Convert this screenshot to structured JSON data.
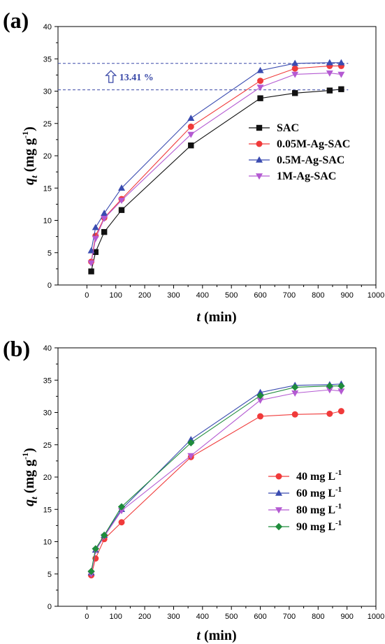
{
  "colors": {
    "black": "#111111",
    "red": "#f03a3a",
    "blue": "#3a4bb0",
    "magenta": "#b45ad2",
    "green": "#1f8c3c",
    "annotation": "#3b4aa8"
  },
  "chart_data": [
    {
      "panel": "(a)",
      "type": "line",
      "xlabel_var": "t",
      "xlabel_unit": " (min)",
      "ylabel_var": "q",
      "ylabel_sub": "t",
      "ylabel_unit": " (mg g",
      "ylabel_sup": "-1",
      "ylabel_close": ")",
      "xlim": [
        -100,
        1000
      ],
      "ylim": [
        0,
        40
      ],
      "xticks": [
        0,
        100,
        200,
        300,
        400,
        500,
        600,
        700,
        800,
        900,
        1000
      ],
      "yticks": [
        0,
        5,
        10,
        15,
        20,
        25,
        30,
        35,
        40
      ],
      "legend_position": "center-right",
      "annotation": {
        "text": "13.41 %",
        "icon": "up-arrow-icon",
        "reference_lines_y": [
          34.3,
          30.2
        ]
      },
      "series": [
        {
          "name": "SAC",
          "color_key": "black",
          "marker": "square",
          "x": [
            15,
            30,
            60,
            120,
            360,
            600,
            720,
            840,
            880
          ],
          "y": [
            2.1,
            5.1,
            8.2,
            11.6,
            21.6,
            28.9,
            29.7,
            30.1,
            30.3
          ]
        },
        {
          "name": "0.05M-Ag-SAC",
          "color_key": "red",
          "marker": "circle",
          "x": [
            15,
            30,
            60,
            120,
            360,
            600,
            720,
            840,
            880
          ],
          "y": [
            3.6,
            7.6,
            10.4,
            13.3,
            24.5,
            31.6,
            33.5,
            33.9,
            33.9
          ]
        },
        {
          "name": "0.5M-Ag-SAC",
          "color_key": "blue",
          "marker": "triangle-up",
          "x": [
            15,
            30,
            60,
            120,
            360,
            600,
            720,
            840,
            880
          ],
          "y": [
            5.3,
            8.9,
            11.1,
            15.0,
            25.8,
            33.2,
            34.3,
            34.4,
            34.4
          ]
        },
        {
          "name": "1M-Ag-SAC",
          "color_key": "magenta",
          "marker": "triangle-down",
          "x": [
            15,
            30,
            60,
            120,
            360,
            600,
            720,
            840,
            880
          ],
          "y": [
            3.4,
            7.2,
            10.3,
            13.1,
            23.3,
            30.6,
            32.6,
            32.8,
            32.6
          ]
        }
      ]
    },
    {
      "panel": "(b)",
      "type": "line",
      "xlabel_var": "t",
      "xlabel_unit": " (min)",
      "ylabel_var": "q",
      "ylabel_sub": "t",
      "ylabel_unit": " (mg g",
      "ylabel_sup": "-1",
      "ylabel_close": ")",
      "xlim": [
        -100,
        1000
      ],
      "ylim": [
        0,
        40
      ],
      "xticks": [
        0,
        100,
        200,
        300,
        400,
        500,
        600,
        700,
        800,
        900,
        1000
      ],
      "yticks": [
        0,
        5,
        10,
        15,
        20,
        25,
        30,
        35,
        40
      ],
      "legend_position": "lower-right",
      "series": [
        {
          "name": "40 mg L",
          "name_sup": "-1",
          "color_key": "red",
          "marker": "circle",
          "x": [
            15,
            30,
            60,
            120,
            360,
            600,
            720,
            840,
            880
          ],
          "y": [
            4.8,
            7.4,
            10.4,
            13.0,
            23.1,
            29.4,
            29.7,
            29.8,
            30.2
          ]
        },
        {
          "name": "60 mg L",
          "name_sup": "-1",
          "color_key": "blue",
          "marker": "triangle-up",
          "x": [
            15,
            30,
            60,
            120,
            360,
            600,
            720,
            840,
            880
          ],
          "y": [
            5.2,
            8.7,
            11.0,
            15.0,
            25.8,
            33.1,
            34.2,
            34.3,
            34.4
          ]
        },
        {
          "name": "80 mg L",
          "name_sup": "-1",
          "color_key": "magenta",
          "marker": "triangle-down",
          "x": [
            15,
            30,
            60,
            120,
            360,
            600,
            720,
            840,
            880
          ],
          "y": [
            5.0,
            8.6,
            10.8,
            14.8,
            23.3,
            31.9,
            33.0,
            33.5,
            33.3
          ]
        },
        {
          "name": "90 mg L",
          "name_sup": "-1",
          "color_key": "green",
          "marker": "diamond",
          "x": [
            15,
            30,
            60,
            120,
            360,
            600,
            720,
            840,
            880
          ],
          "y": [
            5.4,
            8.9,
            11.0,
            15.4,
            25.3,
            32.6,
            33.9,
            34.1,
            34.1
          ]
        }
      ]
    }
  ]
}
